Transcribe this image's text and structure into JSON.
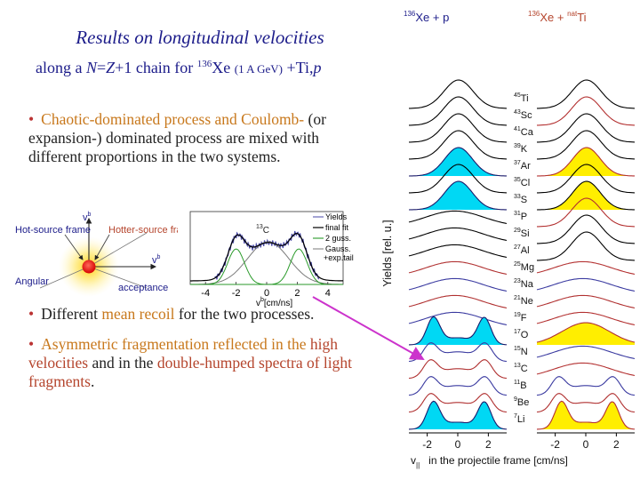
{
  "slide": {
    "title": "Results on longitudinal velocities",
    "subtitle": {
      "prefix": "along a ",
      "N": "N",
      "eq": "=",
      "Z": "Z",
      "plus1": "+1 chain for ",
      "mass": "136",
      "elem": "Xe",
      "energy": "(1 A GeV)",
      "targets": "+Ti,",
      "p": "p"
    },
    "bullet_marker": "•",
    "bullet1": {
      "part1": "Chaotic-dominated process and ",
      "part2": "Coulomb-",
      "part3": "(or expansion-) dominated process are mixed with different proportions in the two systems."
    },
    "bullet2": {
      "part1": "Different ",
      "part2": "mean recoil",
      "part3": " for the two processes."
    },
    "bullet3": {
      "part1": "Asymmetric fragmentation reflected in the ",
      "part2": "high velocities",
      "part3": " and in the ",
      "part4": "double-humped spectra of light fragments",
      "part5": "."
    }
  },
  "inset_diagram": {
    "hot_source": "Hot-source frame",
    "hotter_source": "Hotter-source frame",
    "angular": "Angular",
    "acceptance": "acceptance",
    "v_perp_sup": "b",
    "v_par_sup": "b"
  },
  "inset_fit": {
    "nucleus_mass": "13",
    "nucleus": "C",
    "legend": [
      "Yields",
      "final fit",
      "2 guss.",
      "Gauss.",
      "+exp.tail"
    ],
    "x_ticks": [
      "-4",
      "-2",
      "0",
      "2",
      "4"
    ],
    "xlabel": "v",
    "xlabel_unit": "[cm/ns]",
    "xlabel_sup": "b",
    "xlabel_sub": "||"
  },
  "chart_data": {
    "type": "line",
    "panels": [
      {
        "title_mass": "136",
        "title_elem": "Xe + p",
        "fill": "#00d8f4"
      },
      {
        "title_mass": "136",
        "title_elem": "Xe + ",
        "target_mass": "nat",
        "target_elem": "Ti",
        "fill": "#ffee00"
      }
    ],
    "fragments": [
      {
        "mass": "45",
        "elem": "Ti",
        "p1": "gauss",
        "p2": "gauss"
      },
      {
        "mass": "43",
        "elem": "Sc",
        "p1": "gauss",
        "p2": "gauss"
      },
      {
        "mass": "41",
        "elem": "Ca",
        "p1": "gauss",
        "p2": "gauss"
      },
      {
        "mass": "39",
        "elem": "K",
        "p1": "gauss",
        "p2": "gauss"
      },
      {
        "mass": "37",
        "elem": "Ar",
        "p1": "filled",
        "p2": "filled"
      },
      {
        "mass": "35",
        "elem": "Cl",
        "p1": "gauss",
        "p2": "gauss"
      },
      {
        "mass": "33",
        "elem": "S",
        "p1": "filled",
        "p2": "filled"
      },
      {
        "mass": "31",
        "elem": "P",
        "p1": "flat",
        "p2": "gauss"
      },
      {
        "mass": "29",
        "elem": "Si",
        "p1": "flat",
        "p2": "gauss"
      },
      {
        "mass": "27",
        "elem": "Al",
        "p1": "flat",
        "p2": "gauss"
      },
      {
        "mass": "25",
        "elem": "Mg",
        "p1": "flat",
        "p2": "flat"
      },
      {
        "mass": "23",
        "elem": "Na",
        "p1": "flat",
        "p2": "flat"
      },
      {
        "mass": "21",
        "elem": "Ne",
        "p1": "flat",
        "p2": "flat"
      },
      {
        "mass": "19",
        "elem": "F",
        "p1": "flat",
        "p2": "flat"
      },
      {
        "mass": "17",
        "elem": "O",
        "p1": "double_filled",
        "p2": "filled_broad"
      },
      {
        "mass": "15",
        "elem": "N",
        "p1": "double",
        "p2": "flat"
      },
      {
        "mass": "13",
        "elem": "C",
        "p1": "double",
        "p2": "flat"
      },
      {
        "mass": "11",
        "elem": "B",
        "p1": "double",
        "p2": "double"
      },
      {
        "mass": "9",
        "elem": "Be",
        "p1": "double",
        "p2": "double"
      },
      {
        "mass": "7",
        "elem": "Li",
        "p1": "double_filled",
        "p2": "double_filled"
      }
    ],
    "x_ticks": [
      "-2",
      "0",
      "2"
    ],
    "xlim": [
      -3.2,
      3.2
    ],
    "ylabel": "Yields [rel. u.]",
    "xlabel_v": "v",
    "xlabel_sub": "||",
    "xlabel": "in the projectile frame [cm/ns]"
  },
  "colors": {
    "title": "#1c1c8a",
    "orange": "#c8781c",
    "rust": "#b5452d",
    "cyan": "#00d8f4",
    "yellow": "#ffee00",
    "arrow": "#cc33cc"
  }
}
